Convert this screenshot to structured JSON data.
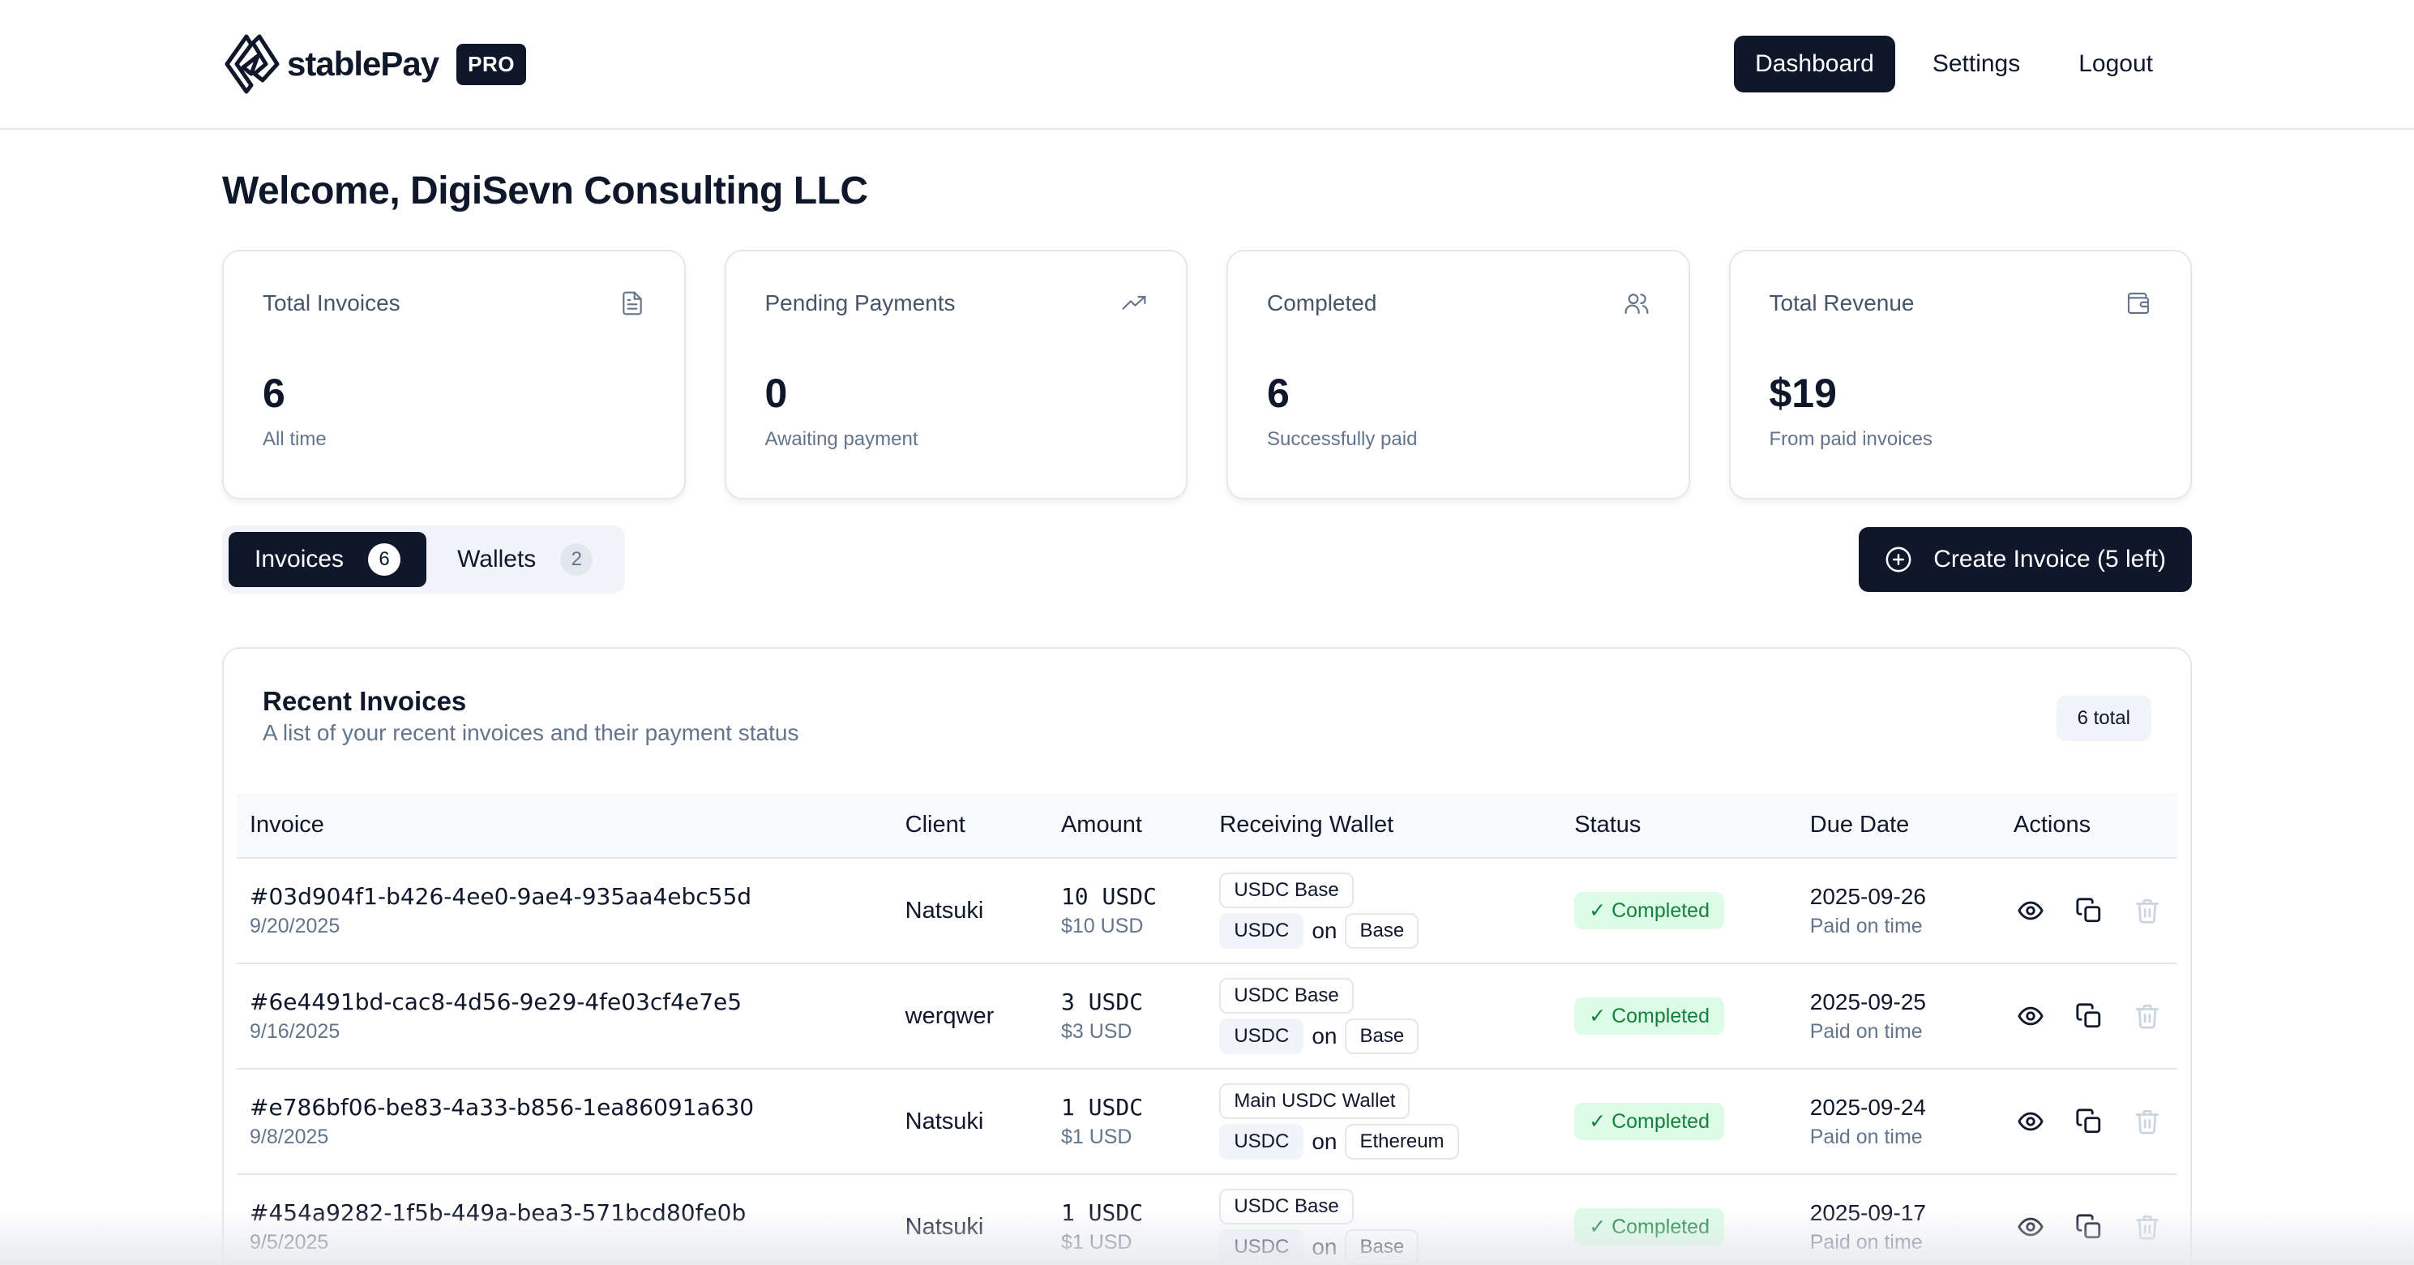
{
  "header": {
    "brand_name": "stablePay",
    "badge": "PRO",
    "nav": [
      {
        "label": "Dashboard",
        "active": true
      },
      {
        "label": "Settings",
        "active": false
      },
      {
        "label": "Logout",
        "active": false
      }
    ]
  },
  "welcome": "Welcome, DigiSevn Consulting LLC",
  "stats": [
    {
      "label": "Total Invoices",
      "value": "6",
      "sub": "All time",
      "icon": "file-text-icon"
    },
    {
      "label": "Pending Payments",
      "value": "0",
      "sub": "Awaiting payment",
      "icon": "trending-up-icon"
    },
    {
      "label": "Completed",
      "value": "6",
      "sub": "Successfully paid",
      "icon": "users-icon"
    },
    {
      "label": "Total Revenue",
      "value": "$19",
      "sub": "From paid invoices",
      "icon": "wallet-icon"
    }
  ],
  "tabs": [
    {
      "label": "Invoices",
      "count": "6",
      "active": true
    },
    {
      "label": "Wallets",
      "count": "2",
      "active": false
    }
  ],
  "create_button": "Create Invoice (5 left)",
  "invoices": {
    "title": "Recent Invoices",
    "description": "A list of your recent invoices and their payment status",
    "total": "6 total",
    "columns": [
      "Invoice",
      "Client",
      "Amount",
      "Receiving Wallet",
      "Status",
      "Due Date",
      "Actions"
    ],
    "on_word": "on",
    "rows": [
      {
        "id": "#03d904f1-b426-4ee0-9ae4-935aa4ebc55d",
        "date": "9/20/2025",
        "client": "Natsuki",
        "amount": "10 USDC",
        "usd": "$10 USD",
        "wallet": "USDC Base",
        "token": "USDC",
        "network": "Base",
        "status": "✓ Completed",
        "due": "2025-09-26",
        "due_note": "Paid on time"
      },
      {
        "id": "#6e4491bd-cac8-4d56-9e29-4fe03cf4e7e5",
        "date": "9/16/2025",
        "client": "werqwer",
        "amount": "3 USDC",
        "usd": "$3 USD",
        "wallet": "USDC Base",
        "token": "USDC",
        "network": "Base",
        "status": "✓ Completed",
        "due": "2025-09-25",
        "due_note": "Paid on time"
      },
      {
        "id": "#e786bf06-be83-4a33-b856-1ea86091a630",
        "date": "9/8/2025",
        "client": "Natsuki",
        "amount": "1 USDC",
        "usd": "$1 USD",
        "wallet": "Main USDC Wallet",
        "token": "USDC",
        "network": "Ethereum",
        "status": "✓ Completed",
        "due": "2025-09-24",
        "due_note": "Paid on time"
      },
      {
        "id": "#454a9282-1f5b-449a-bea3-571bcd80fe0b",
        "date": "9/5/2025",
        "client": "Natsuki",
        "amount": "1 USDC",
        "usd": "$1 USD",
        "wallet": "USDC Base",
        "token": "USDC",
        "network": "Base",
        "status": "✓ Completed",
        "due": "2025-09-17",
        "due_note": "Paid on time"
      }
    ]
  }
}
